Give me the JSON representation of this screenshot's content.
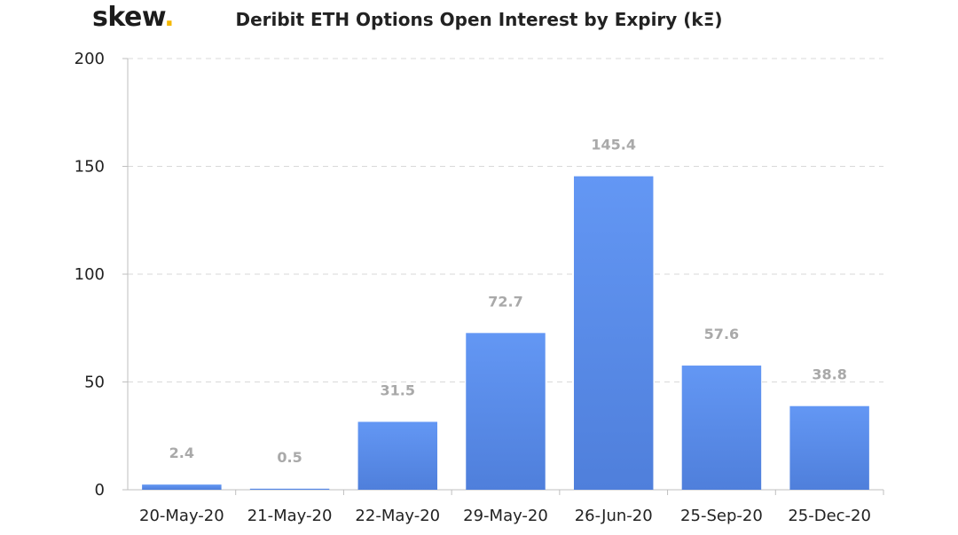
{
  "brand": {
    "name": "skew",
    "dot": "."
  },
  "chart_data": {
    "type": "bar",
    "title": "Deribit ETH Options Open Interest by Expiry (kΞ)",
    "xlabel": "",
    "ylabel": "",
    "categories": [
      "20-May-20",
      "21-May-20",
      "22-May-20",
      "29-May-20",
      "26-Jun-20",
      "25-Sep-20",
      "25-Dec-20"
    ],
    "values": [
      2.4,
      0.5,
      31.5,
      72.7,
      145.4,
      57.6,
      38.8
    ],
    "value_labels": [
      "2.4",
      "0.5",
      "31.5",
      "72.7",
      "145.4",
      "57.6",
      "38.8"
    ],
    "ylim": [
      0,
      200
    ],
    "yticks": [
      0,
      50,
      100,
      150,
      200
    ],
    "grid": true,
    "legend": "none",
    "colors": {
      "bar_top": "#6397f4",
      "bar_bottom": "#4f7fdb",
      "grid": "#d9d9d9",
      "axis": "#bfbfbf",
      "label": "#a9a9a9"
    }
  }
}
